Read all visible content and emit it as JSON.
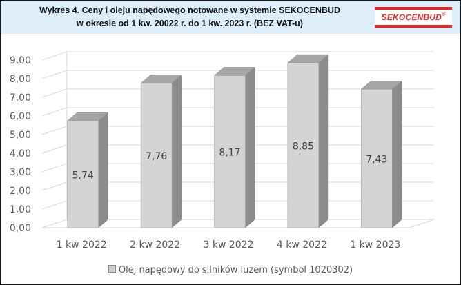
{
  "chart_data": {
    "type": "bar",
    "title_line1": "Wykres 4. Ceny i oleju napędowego notowane w systemie SEKOCENBUD",
    "title_line2": "w okresie od 1 kw. 20022 r. do 1 kw. 2023 r. (BEZ VAT-u)",
    "categories": [
      "1 kw 2022",
      "2 kw 2022",
      "3 kw 2022",
      "4 kw 2022",
      "1 kw 2023"
    ],
    "series": [
      {
        "name": "Olej napędowy do silników luzem (symbol 1020302)",
        "values": [
          5.74,
          7.76,
          8.17,
          8.85,
          7.43
        ]
      }
    ],
    "data_labels": [
      "5,74",
      "7,76",
      "8,17",
      "8,85",
      "7,43"
    ],
    "y_ticks": [
      "0,00",
      "1,00",
      "2,00",
      "3,00",
      "4,00",
      "5,00",
      "6,00",
      "7,00",
      "8,00",
      "9,00"
    ],
    "ylim": [
      0,
      9
    ],
    "grid": true,
    "legend_position": "bottom",
    "style": "3d-column",
    "colors": {
      "bar_front": "#d4d4d4",
      "bar_side": "#8c8c8c",
      "bar_top": "#a6a6a6",
      "grid": "#d9d9d9"
    }
  },
  "header": {
    "logo_text": "SEKOCENBUD",
    "logo_mark": "®",
    "background": "#ddeefa"
  }
}
